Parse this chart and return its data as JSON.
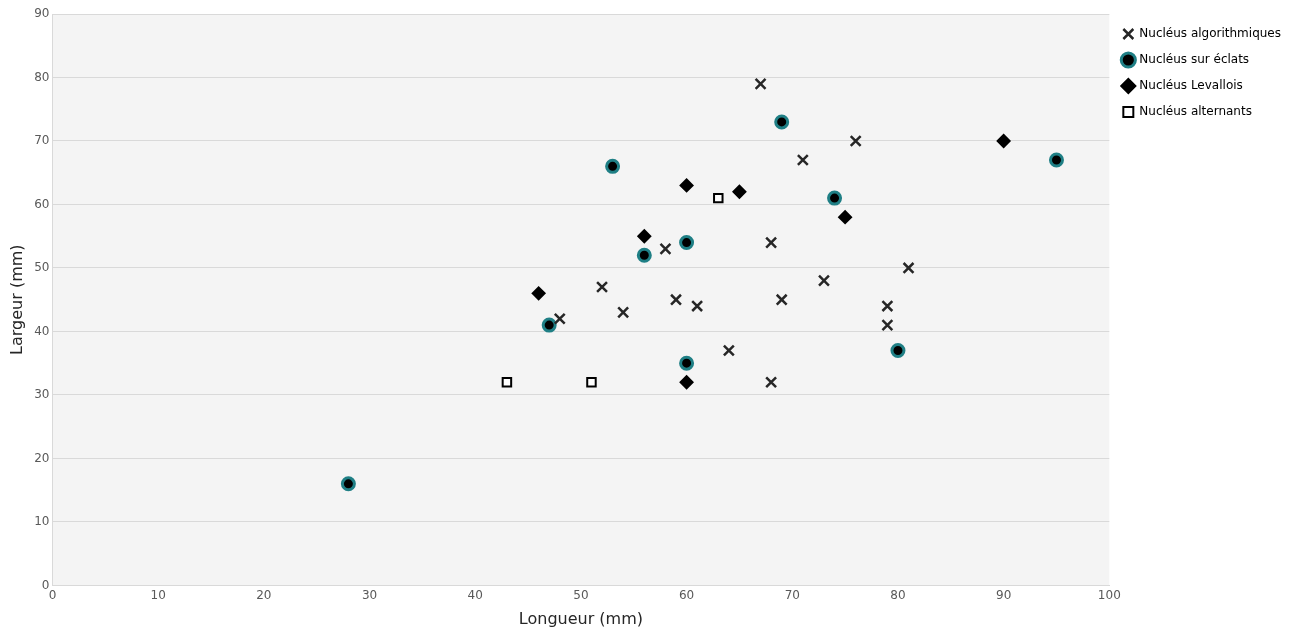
{
  "chart_data": {
    "type": "scatter",
    "xlabel": "Longueur (mm)",
    "ylabel": "Largeur (mm)",
    "xlim": [
      0,
      100
    ],
    "xticks": [
      0,
      10,
      20,
      30,
      40,
      50,
      60,
      70,
      80,
      90,
      100
    ],
    "ylim": [
      0,
      90
    ],
    "yticks": [
      0,
      10,
      20,
      30,
      40,
      50,
      60,
      70,
      80,
      90
    ],
    "grid": "y",
    "legend": "right",
    "series": [
      {
        "name": "Nucléus algorithmiques",
        "color": "#262626",
        "marker": "cross",
        "x": [
          67,
          76,
          71,
          68,
          81,
          58,
          52,
          54,
          48,
          59,
          61,
          69,
          73,
          79,
          79,
          64,
          68
        ],
        "values": [
          79,
          70,
          67,
          54,
          50,
          53,
          47,
          43,
          42,
          45,
          44,
          45,
          48,
          44,
          41,
          37,
          32
        ]
      },
      {
        "name": "Nucléus sur éclats",
        "color": "#1f7f85",
        "marker": "circle",
        "x": [
          69,
          53,
          74,
          60,
          56,
          47,
          60,
          80,
          95,
          28
        ],
        "values": [
          73,
          66,
          61,
          54,
          52,
          41,
          35,
          37,
          67,
          16
        ]
      },
      {
        "name": "Nucléus Levallois",
        "color": "#000000",
        "marker": "diamond",
        "x": [
          90,
          60,
          65,
          75,
          56,
          46,
          60
        ],
        "values": [
          70,
          63,
          62,
          58,
          55,
          46,
          32
        ]
      },
      {
        "name": "Nucléus alternants",
        "color": "#000000",
        "marker": "square",
        "x": [
          63,
          43,
          51
        ],
        "values": [
          61,
          32,
          32
        ]
      }
    ]
  }
}
